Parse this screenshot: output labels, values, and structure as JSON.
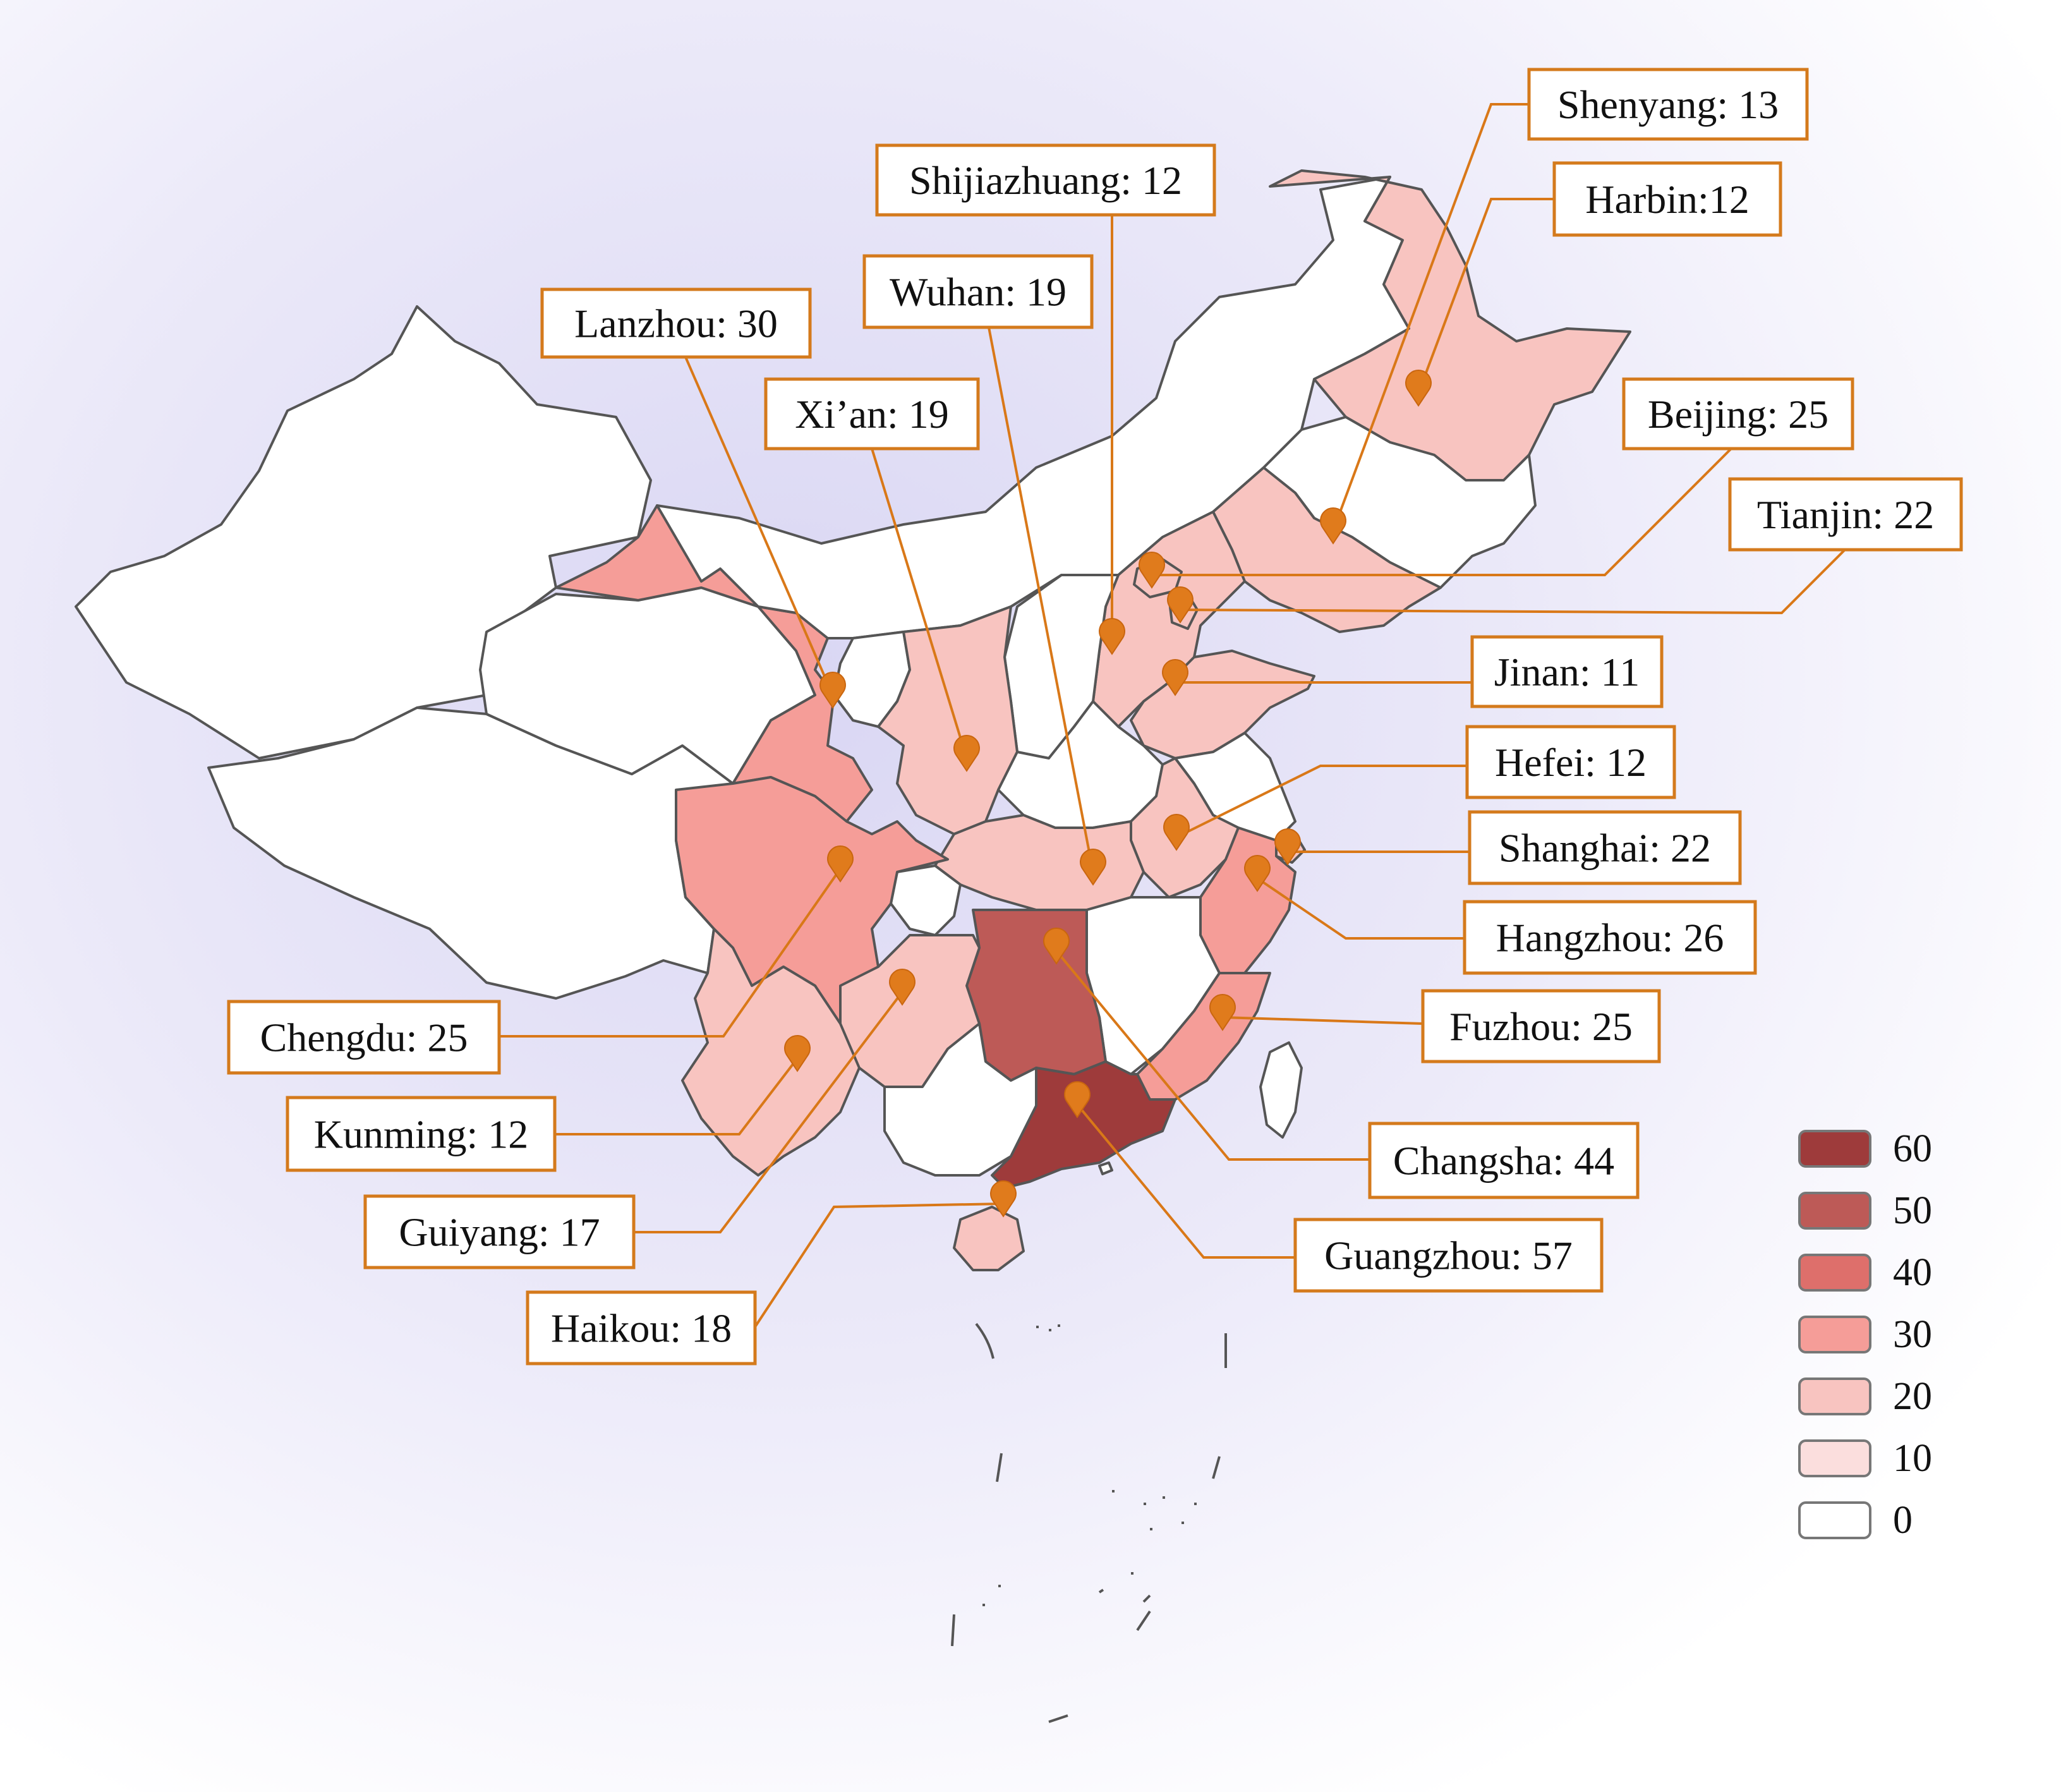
{
  "map": {
    "colors": {
      "line": "#d97818",
      "marker": "#e07b1c",
      "border": "#555555",
      "land_none": "#ffffff",
      "label_fill": "#ffffff",
      "label_border": "#d47a1c",
      "background_glow": "#e9e7f7"
    },
    "labels": [
      {
        "id": "shenyang",
        "text": "Shenyang: 13",
        "value": 13
      },
      {
        "id": "harbin",
        "text": "Harbin:12",
        "value": 12
      },
      {
        "id": "shijiazhuang",
        "text": "Shijiazhuang: 12",
        "value": 12
      },
      {
        "id": "wuhan",
        "text": "Wuhan: 19",
        "value": 19
      },
      {
        "id": "lanzhou",
        "text": "Lanzhou: 30",
        "value": 30
      },
      {
        "id": "xian",
        "text": "Xi’an: 19",
        "value": 19
      },
      {
        "id": "beijing",
        "text": "Beijing: 25",
        "value": 25
      },
      {
        "id": "tianjin",
        "text": "Tianjin: 22",
        "value": 22
      },
      {
        "id": "jinan",
        "text": "Jinan: 11",
        "value": 11
      },
      {
        "id": "hefei",
        "text": "Hefei: 12",
        "value": 12
      },
      {
        "id": "shanghai",
        "text": "Shanghai: 22",
        "value": 22
      },
      {
        "id": "hangzhou",
        "text": "Hangzhou: 26",
        "value": 26
      },
      {
        "id": "fuzhou",
        "text": "Fuzhou: 25",
        "value": 25
      },
      {
        "id": "chengdu",
        "text": "Chengdu: 25",
        "value": 25
      },
      {
        "id": "kunming",
        "text": "Kunming: 12",
        "value": 12
      },
      {
        "id": "guiyang",
        "text": "Guiyang: 17",
        "value": 17
      },
      {
        "id": "changsha",
        "text": "Changsha: 44",
        "value": 44
      },
      {
        "id": "guangzhou",
        "text": "Guangzhou: 57",
        "value": 57
      },
      {
        "id": "haikou",
        "text": "Haikou: 18",
        "value": 18
      }
    ],
    "legend": [
      {
        "label": "60",
        "color": "#9e3b3b"
      },
      {
        "label": "50",
        "color": "#bd5a57"
      },
      {
        "label": "40",
        "color": "#de6f6b"
      },
      {
        "label": "30",
        "color": "#f59d98"
      },
      {
        "label": "20",
        "color": "#f8c4c0"
      },
      {
        "label": "10",
        "color": "#fbdedd"
      },
      {
        "label": "0",
        "color": "#ffffff"
      }
    ]
  }
}
